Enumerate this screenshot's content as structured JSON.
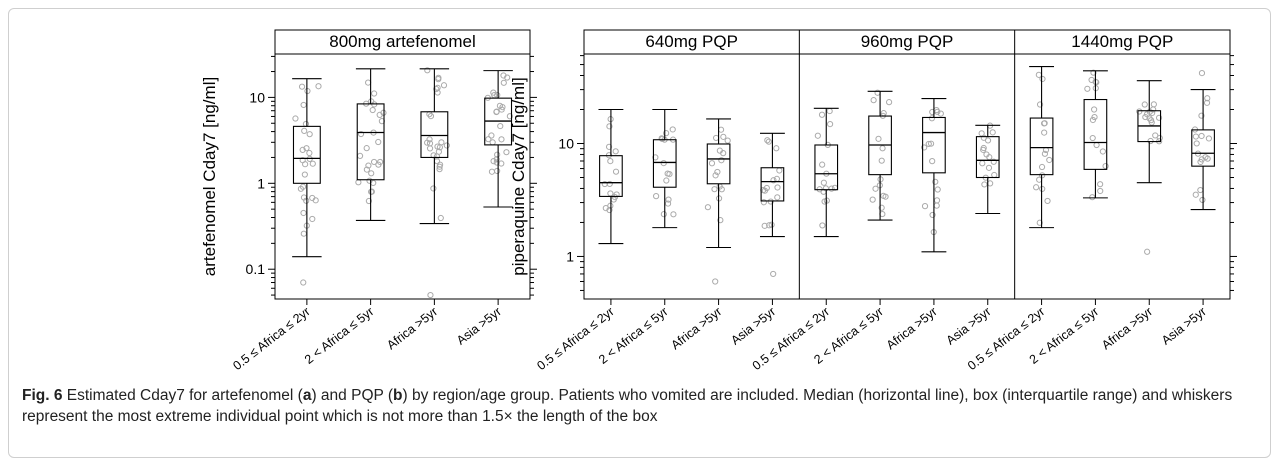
{
  "chart_data": [
    {
      "type": "box",
      "panel_label": "a",
      "strip_titles": [
        "800mg artefenomel"
      ],
      "ylabel": "artefenomel Cday7 [ng/ml]",
      "yscale": "log",
      "ylim": [
        0.045,
        32
      ],
      "yticks": [
        0.1,
        1,
        10
      ],
      "ytick_labels": [
        "0.1",
        "1",
        "10"
      ],
      "categories": [
        "0.5 ≤ Africa ≤ 2yr",
        "2 < Africa ≤ 5yr",
        "Africa >5yr",
        "Asia >5yr"
      ],
      "panels": [
        {
          "title": "800mg artefenomel",
          "boxes": [
            {
              "whisker_low": 0.14,
              "q1": 1.0,
              "median": 1.95,
              "q3": 4.6,
              "whisker_high": 16.5,
              "outliers": [
                0.07
              ]
            },
            {
              "whisker_low": 0.37,
              "q1": 1.1,
              "median": 3.9,
              "q3": 8.4,
              "whisker_high": 21.5,
              "outliers": []
            },
            {
              "whisker_low": 0.34,
              "q1": 2.0,
              "median": 3.6,
              "q3": 6.8,
              "whisker_high": 21.5,
              "outliers": [
                0.05
              ]
            },
            {
              "whisker_low": 0.53,
              "q1": 2.8,
              "median": 5.3,
              "q3": 9.8,
              "whisker_high": 20.5,
              "outliers": []
            }
          ]
        }
      ]
    },
    {
      "type": "box",
      "panel_label": "b",
      "strip_titles": [
        "640mg PQP",
        "960mg PQP",
        "1440mg PQP"
      ],
      "ylabel": "piperaquine Cday7 [ng/ml]",
      "yscale": "log",
      "ylim": [
        0.42,
        62
      ],
      "yticks": [
        1,
        10
      ],
      "ytick_labels": [
        "1",
        "10"
      ],
      "categories": [
        "0.5 ≤ Africa ≤ 2yr",
        "2 < Africa ≤ 5yr",
        "Africa >5yr",
        "Asia >5yr"
      ],
      "panels": [
        {
          "title": "640mg PQP",
          "boxes": [
            {
              "whisker_low": 1.3,
              "q1": 3.4,
              "median": 4.5,
              "q3": 7.8,
              "whisker_high": 20,
              "outliers": []
            },
            {
              "whisker_low": 1.8,
              "q1": 4.1,
              "median": 6.8,
              "q3": 10.8,
              "whisker_high": 20,
              "outliers": []
            },
            {
              "whisker_low": 1.2,
              "q1": 4.4,
              "median": 7.3,
              "q3": 9.9,
              "whisker_high": 16.5,
              "outliers": [
                0.6
              ]
            },
            {
              "whisker_low": 1.5,
              "q1": 3.1,
              "median": 4.6,
              "q3": 6.1,
              "whisker_high": 12.3,
              "outliers": [
                0.7
              ]
            }
          ]
        },
        {
          "title": "960mg PQP",
          "boxes": [
            {
              "whisker_low": 1.5,
              "q1": 3.9,
              "median": 5.4,
              "q3": 9.7,
              "whisker_high": 20.5,
              "outliers": []
            },
            {
              "whisker_low": 2.1,
              "q1": 5.3,
              "median": 9.7,
              "q3": 17.5,
              "whisker_high": 29,
              "outliers": []
            },
            {
              "whisker_low": 1.1,
              "q1": 5.5,
              "median": 12.5,
              "q3": 17,
              "whisker_high": 25,
              "outliers": []
            },
            {
              "whisker_low": 2.4,
              "q1": 5.0,
              "median": 7.1,
              "q3": 11.5,
              "whisker_high": 14.5,
              "outliers": []
            }
          ]
        },
        {
          "title": "1440mg PQP",
          "boxes": [
            {
              "whisker_low": 1.8,
              "q1": 5.3,
              "median": 9.2,
              "q3": 16.8,
              "whisker_high": 48,
              "outliers": []
            },
            {
              "whisker_low": 3.3,
              "q1": 5.9,
              "median": 10.2,
              "q3": 24.5,
              "whisker_high": 44,
              "outliers": []
            },
            {
              "whisker_low": 4.5,
              "q1": 10.4,
              "median": 14.3,
              "q3": 19.5,
              "whisker_high": 36,
              "outliers": [
                1.1
              ]
            },
            {
              "whisker_low": 2.6,
              "q1": 6.3,
              "median": 8.2,
              "q3": 13.2,
              "whisker_high": 30,
              "outliers": [
                42
              ]
            }
          ]
        }
      ]
    }
  ],
  "caption": {
    "label": "Fig. 6",
    "part1": " Estimated Cday7 for artefenomel (",
    "a": "a",
    "part2": ") and PQP (",
    "b": "b",
    "part3": ") by region/age group. Patients who vomited are included. Median (horizontal line), box (interquartile range) and whiskers represent the most extreme individual point which is not more than 1.5× the length of the box"
  },
  "colors": {
    "points": "#aaaaaa",
    "box": "#000000",
    "frame": "#cfcfcf",
    "caption_text": "#222222"
  }
}
